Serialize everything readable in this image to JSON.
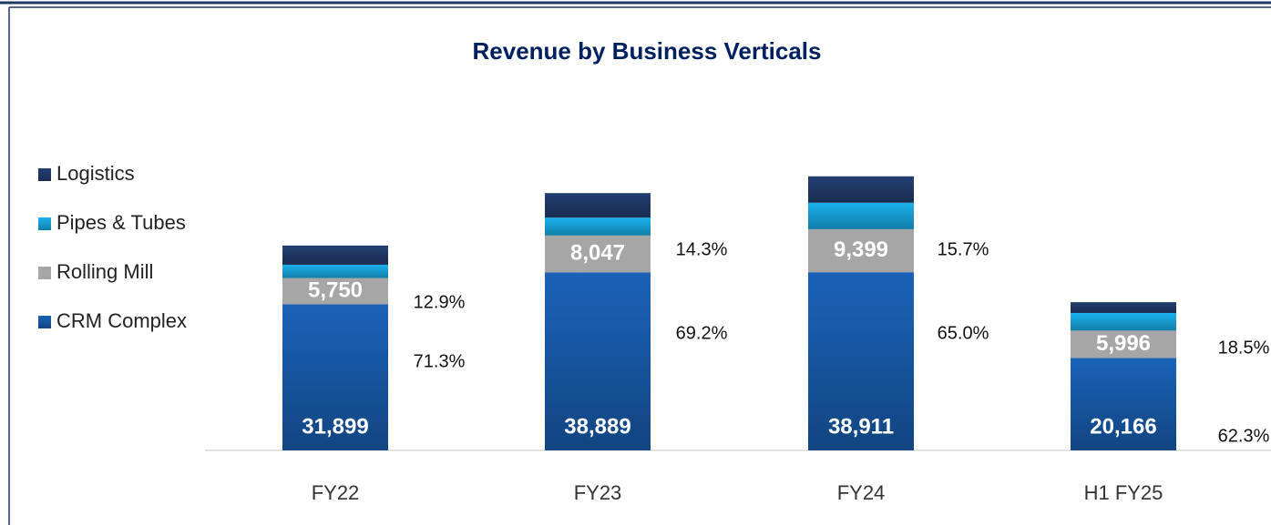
{
  "chart_data": {
    "type": "stacked_bar",
    "title": "Revenue by Business Verticals",
    "categories": [
      "FY22",
      "FY23",
      "FY24",
      "H1 FY25"
    ],
    "series": [
      {
        "name": "CRM Complex",
        "color": "#1a63b8",
        "values": [
          31899,
          38889,
          38911,
          20166
        ],
        "value_labels": [
          "31,899",
          "38,889",
          "38,911",
          "20,166"
        ],
        "percent_labels": [
          "71.3%",
          "69.2%",
          "65.0%",
          "62.3%"
        ]
      },
      {
        "name": "Rolling Mill",
        "color": "#a6a6a6",
        "values": [
          5750,
          8047,
          9399,
          5996
        ],
        "value_labels": [
          "5,750",
          "8,047",
          "9,399",
          "5,996"
        ],
        "percent_labels": [
          "12.9%",
          "14.3%",
          "15.7%",
          "18.5%"
        ]
      },
      {
        "name": "Pipes & Tubes",
        "color": "#1ab2ee",
        "values": [
          2900,
          3900,
          5780,
          3850
        ]
      },
      {
        "name": "Logistics",
        "color": "#243f73",
        "values": [
          4190,
          5360,
          5770,
          2360
        ]
      }
    ],
    "ylim": [
      0,
      62000
    ]
  }
}
